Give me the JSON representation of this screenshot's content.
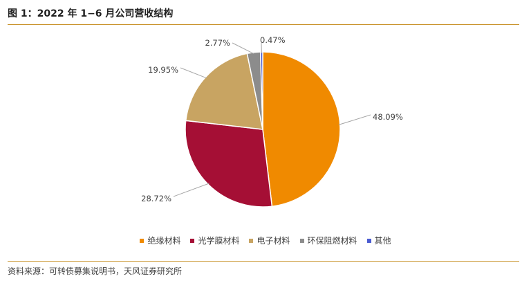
{
  "title": "图 1：2022 年 1−6 月公司营收结构",
  "source": "资料来源：可转债募集说明书，天风证券研究所",
  "chart_data": {
    "type": "pie",
    "slices": [
      {
        "name": "绝缘材料",
        "value": 48.09,
        "label": "48.09%",
        "color": "#f08a00"
      },
      {
        "name": "光学膜材料",
        "value": 28.72,
        "label": "28.72%",
        "color": "#a50f35"
      },
      {
        "name": "电子材料",
        "value": 19.95,
        "label": "19.95%",
        "color": "#c8a462"
      },
      {
        "name": "环保阻燃材料",
        "value": 2.77,
        "label": "2.77%",
        "color": "#8c8c8c"
      },
      {
        "name": "其他",
        "value": 0.47,
        "label": "0.47%",
        "color": "#4a5bd1"
      }
    ],
    "legend_position": "bottom"
  }
}
